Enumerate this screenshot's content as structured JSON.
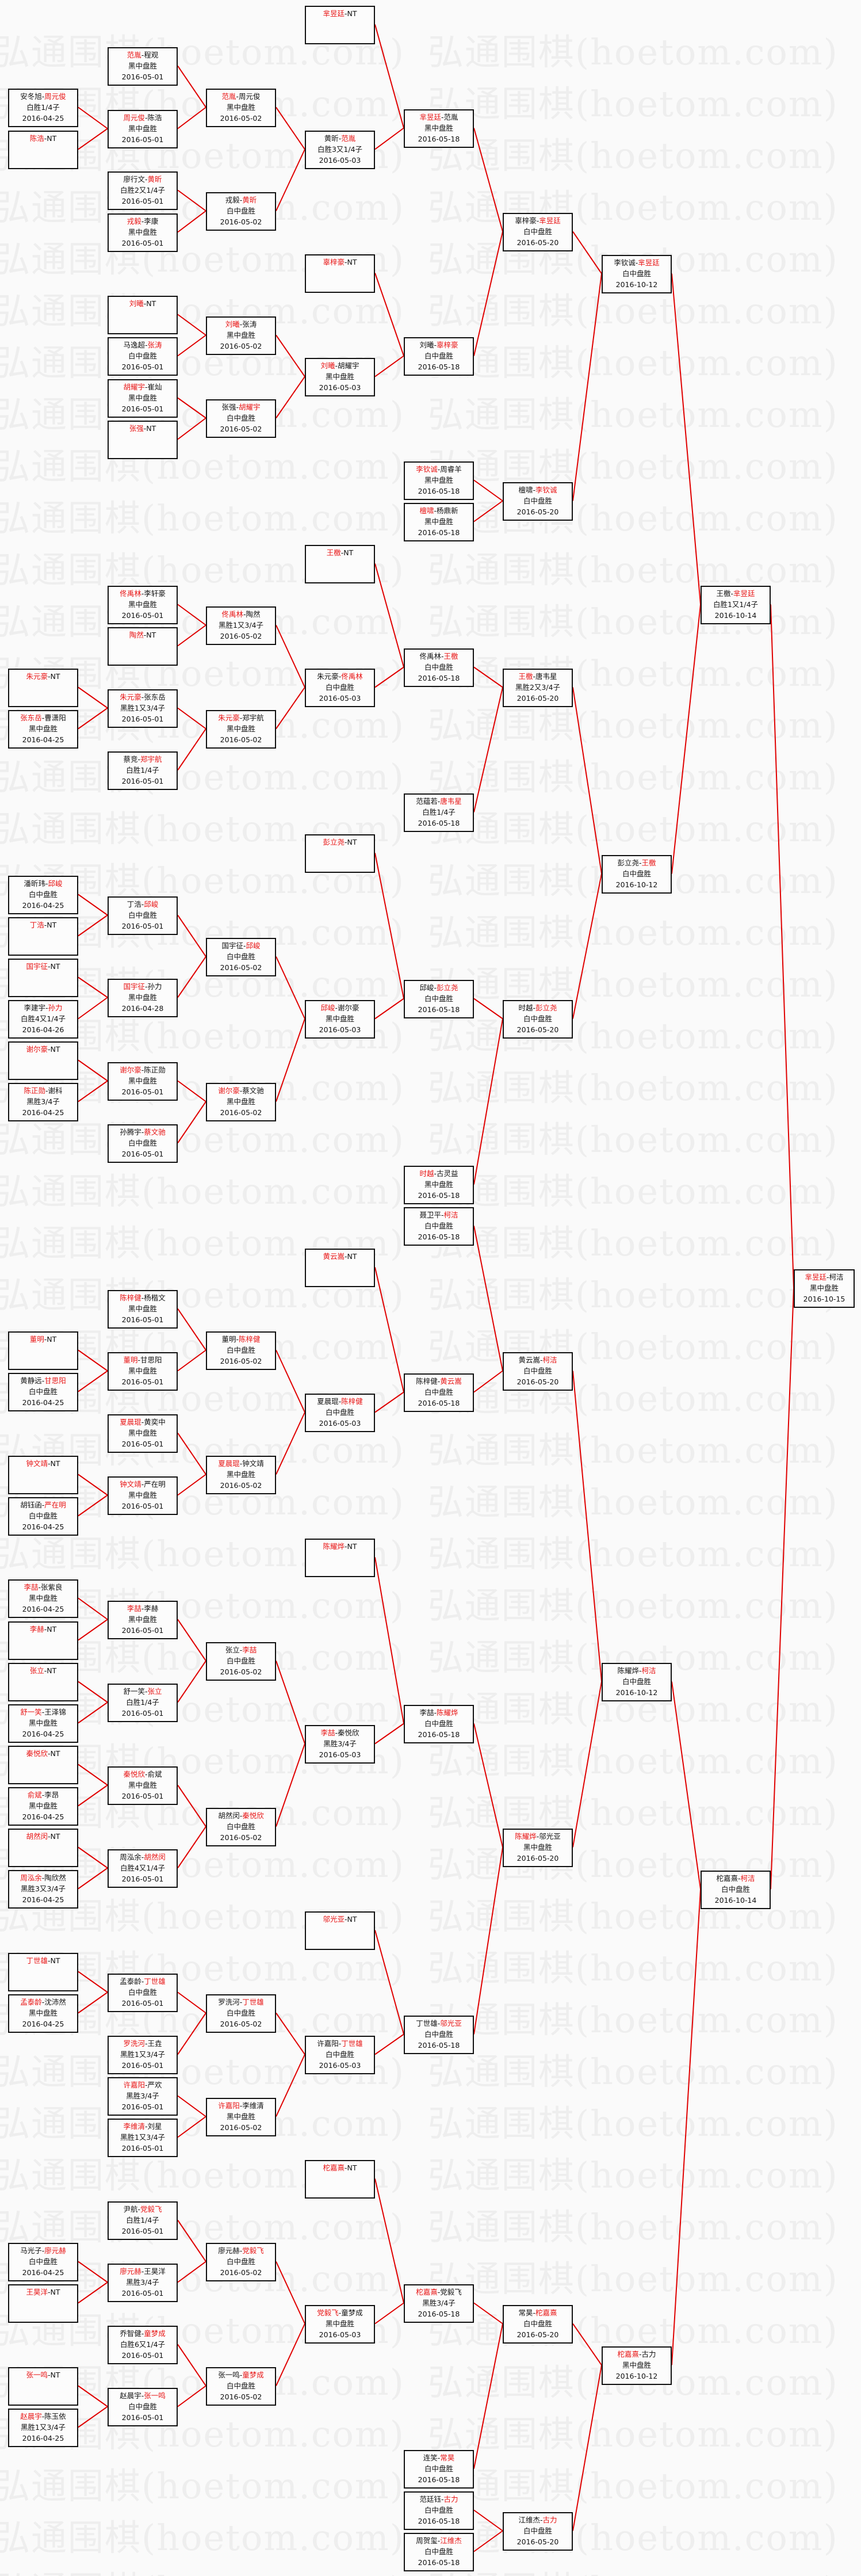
{
  "watermark": "弘通围棋(hoetom.com)",
  "separator": "-",
  "colors": {
    "winner": "#e81414",
    "connector": "#e00000",
    "border": "#111111"
  },
  "bracket": {
    "rounds": [
      [
        {
          "p1": "安冬旭",
          "p2": "周元俊",
          "winner": 2,
          "result": "白胜1/4子",
          "date": "2016-04-25"
        },
        {
          "p1": "陈浩",
          "p2": "NT",
          "winner": 1
        },
        {
          "p1": "朱元豪",
          "p2": "NT",
          "winner": 1
        },
        {
          "p1": "张东岳",
          "p2": "曹潇阳",
          "winner": 1,
          "result": "黑中盘胜",
          "date": "2016-04-25"
        },
        {
          "p1": "潘昕玮",
          "p2": "邱峻",
          "winner": 2,
          "result": "白中盘胜",
          "date": "2016-04-25"
        },
        {
          "p1": "丁浩",
          "p2": "NT",
          "winner": 1
        },
        {
          "p1": "国宇征",
          "p2": "NT",
          "winner": 1
        },
        {
          "p1": "李建宇",
          "p2": "孙力",
          "winner": 2,
          "result": "白胜4又1/4子",
          "date": "2016-04-26"
        },
        {
          "p1": "谢尔豪",
          "p2": "NT",
          "winner": 1
        },
        {
          "p1": "陈正勋",
          "p2": "谢科",
          "winner": 1,
          "result": "黑胜3/4子",
          "date": "2016-04-25"
        },
        {
          "p1": "董明",
          "p2": "NT",
          "winner": 1
        },
        {
          "p1": "黄静远",
          "p2": "甘思阳",
          "winner": 2,
          "result": "白中盘胜",
          "date": "2016-04-25"
        },
        {
          "p1": "钟文靖",
          "p2": "NT",
          "winner": 1
        },
        {
          "p1": "胡钰函",
          "p2": "严在明",
          "winner": 2,
          "result": "白中盘胜",
          "date": "2016-04-25"
        },
        {
          "p1": "李喆",
          "p2": "张紫良",
          "winner": 1,
          "result": "黑中盘胜",
          "date": "2016-04-25"
        },
        {
          "p1": "李赫",
          "p2": "NT",
          "winner": 1
        },
        {
          "p1": "张立",
          "p2": "NT",
          "winner": 1
        },
        {
          "p1": "舒一笑",
          "p2": "王泽锦",
          "winner": 1,
          "result": "黑中盘胜",
          "date": "2016-04-25"
        },
        {
          "p1": "秦悦欣",
          "p2": "NT",
          "winner": 1
        },
        {
          "p1": "俞斌",
          "p2": "李昂",
          "winner": 1,
          "result": "黑中盘胜",
          "date": "2016-04-25"
        },
        {
          "p1": "胡然闵",
          "p2": "NT",
          "winner": 1
        },
        {
          "p1": "周泓余",
          "p2": "陶欣然",
          "winner": 1,
          "result": "黑胜3又3/4子",
          "date": "2016-04-25"
        },
        {
          "p1": "丁世雄",
          "p2": "NT",
          "winner": 1
        },
        {
          "p1": "孟泰龄",
          "p2": "沈沛然",
          "winner": 1,
          "result": "黑中盘胜",
          "date": "2016-04-25"
        },
        {
          "p1": "马光子",
          "p2": "廖元赫",
          "winner": 2,
          "result": "白中盘胜",
          "date": "2016-04-25"
        },
        {
          "p1": "王昊洋",
          "p2": "NT",
          "winner": 1
        },
        {
          "p1": "张一鸣",
          "p2": "NT",
          "winner": 1
        },
        {
          "p1": "赵晨宇",
          "p2": "陈玉依",
          "winner": 1,
          "result": "黑胜1又3/4子",
          "date": "2016-04-25"
        }
      ],
      [
        {
          "p1": "范胤",
          "p2": "程观",
          "winner": 1,
          "result": "黑中盘胜",
          "date": "2016-05-01"
        },
        {
          "p1": "周元俊",
          "p2": "陈浩",
          "winner": 1,
          "result": "黑中盘胜",
          "date": "2016-05-01"
        },
        {
          "p1": "廖行文",
          "p2": "黄昕",
          "winner": 2,
          "result": "白胜2又1/4子",
          "date": "2016-05-01"
        },
        {
          "p1": "戎毅",
          "p2": "李康",
          "winner": 1,
          "result": "黑中盘胜",
          "date": "2016-05-01"
        },
        {
          "p1": "刘曦",
          "p2": "NT",
          "winner": 1
        },
        {
          "p1": "马逸超",
          "p2": "张涛",
          "winner": 2,
          "result": "白中盘胜",
          "date": "2016-05-01"
        },
        {
          "p1": "胡耀宇",
          "p2": "崔灿",
          "winner": 1,
          "result": "黑中盘胜",
          "date": "2016-05-01"
        },
        {
          "p1": "张强",
          "p2": "NT",
          "winner": 1
        },
        {
          "p1": "佟禹林",
          "p2": "李轩豪",
          "winner": 1,
          "result": "黑中盘胜",
          "date": "2016-05-01"
        },
        {
          "p1": "陶然",
          "p2": "NT",
          "winner": 1
        },
        {
          "p1": "朱元豪",
          "p2": "张东岳",
          "winner": 1,
          "result": "黑胜1又3/4子",
          "date": "2016-05-01"
        },
        {
          "p1": "蔡竞",
          "p2": "郑宇航",
          "winner": 2,
          "result": "白胜1/4子",
          "date": "2016-05-01"
        },
        {
          "p1": "丁浩",
          "p2": "邱峻",
          "winner": 2,
          "result": "白中盘胜",
          "date": "2016-05-01"
        },
        {
          "p1": "国宇征",
          "p2": "孙力",
          "winner": 1,
          "result": "黑中盘胜",
          "date": "2016-04-28"
        },
        {
          "p1": "谢尔豪",
          "p2": "陈正勋",
          "winner": 1,
          "result": "黑中盘胜",
          "date": "2016-05-01"
        },
        {
          "p1": "孙腾宇",
          "p2": "蔡文驰",
          "winner": 2,
          "result": "白中盘胜",
          "date": "2016-05-01"
        },
        {
          "p1": "陈梓健",
          "p2": "杨楷文",
          "winner": 1,
          "result": "黑中盘胜",
          "date": "2016-05-01"
        },
        {
          "p1": "董明",
          "p2": "甘思阳",
          "winner": 1,
          "result": "黑中盘胜",
          "date": "2016-05-01"
        },
        {
          "p1": "夏晨琨",
          "p2": "黄奕中",
          "winner": 1,
          "result": "黑中盘胜",
          "date": "2016-05-01"
        },
        {
          "p1": "钟文靖",
          "p2": "严在明",
          "winner": 1,
          "result": "黑中盘胜",
          "date": "2016-05-01"
        },
        {
          "p1": "李喆",
          "p2": "李赫",
          "winner": 1,
          "result": "黑中盘胜",
          "date": "2016-05-01"
        },
        {
          "p1": "舒一笑",
          "p2": "张立",
          "winner": 2,
          "result": "白胜1/4子",
          "date": "2016-05-01"
        },
        {
          "p1": "秦悦欣",
          "p2": "俞斌",
          "winner": 1,
          "result": "黑中盘胜",
          "date": "2016-05-01"
        },
        {
          "p1": "周泓余",
          "p2": "胡然闵",
          "winner": 2,
          "result": "白胜4又1/4子",
          "date": "2016-05-01"
        },
        {
          "p1": "孟泰龄",
          "p2": "丁世雄",
          "winner": 2,
          "result": "白中盘胜",
          "date": "2016-05-01"
        },
        {
          "p1": "罗洗河",
          "p2": "王垚",
          "winner": 1,
          "result": "黑胜1又3/4子",
          "date": "2016-05-01"
        },
        {
          "p1": "许嘉阳",
          "p2": "严欢",
          "winner": 1,
          "result": "黑胜3/4子",
          "date": "2016-05-01"
        },
        {
          "p1": "李维清",
          "p2": "刘星",
          "winner": 1,
          "result": "黑胜1又3/4子",
          "date": "2016-05-01"
        },
        {
          "p1": "尹航",
          "p2": "党毅飞",
          "winner": 2,
          "result": "白胜1/4子",
          "date": "2016-05-01"
        },
        {
          "p1": "廖元赫",
          "p2": "王昊洋",
          "winner": 1,
          "result": "黑胜3/4子",
          "date": "2016-05-01"
        },
        {
          "p1": "乔智健",
          "p2": "童梦成",
          "winner": 2,
          "result": "白胜6又1/4子",
          "date": "2016-05-01"
        },
        {
          "p1": "赵晨宇",
          "p2": "张一鸣",
          "winner": 2,
          "result": "白中盘胜",
          "date": "2016-05-01"
        }
      ],
      [
        {
          "p1": "范胤",
          "p2": "周元俊",
          "winner": 1,
          "result": "黑中盘胜",
          "date": "2016-05-02"
        },
        {
          "p1": "戎毅",
          "p2": "黄昕",
          "winner": 2,
          "result": "白中盘胜",
          "date": "2016-05-02"
        },
        {
          "p1": "刘曦",
          "p2": "张涛",
          "winner": 1,
          "result": "黑中盘胜",
          "date": "2016-05-02"
        },
        {
          "p1": "张强",
          "p2": "胡耀宇",
          "winner": 2,
          "result": "白中盘胜",
          "date": "2016-05-02"
        },
        {
          "p1": "佟禹林",
          "p2": "陶然",
          "winner": 1,
          "result": "黑胜1又3/4子",
          "date": "2016-05-02"
        },
        {
          "p1": "朱元豪",
          "p2": "郑宇航",
          "winner": 1,
          "result": "黑中盘胜",
          "date": "2016-05-02"
        },
        {
          "p1": "国宇征",
          "p2": "邱峻",
          "winner": 2,
          "result": "白中盘胜",
          "date": "2016-05-02"
        },
        {
          "p1": "谢尔豪",
          "p2": "蔡文驰",
          "winner": 1,
          "result": "黑中盘胜",
          "date": "2016-05-02"
        },
        {
          "p1": "董明",
          "p2": "陈梓健",
          "winner": 2,
          "result": "白中盘胜",
          "date": "2016-05-02"
        },
        {
          "p1": "夏晨琨",
          "p2": "钟文靖",
          "winner": 1,
          "result": "黑中盘胜",
          "date": "2016-05-02"
        },
        {
          "p1": "张立",
          "p2": "李喆",
          "winner": 2,
          "result": "白中盘胜",
          "date": "2016-05-02"
        },
        {
          "p1": "胡然闵",
          "p2": "秦悦欣",
          "winner": 2,
          "result": "白中盘胜",
          "date": "2016-05-02"
        },
        {
          "p1": "罗洗河",
          "p2": "丁世雄",
          "winner": 2,
          "result": "白中盘胜",
          "date": "2016-05-02"
        },
        {
          "p1": "许嘉阳",
          "p2": "李维清",
          "winner": 1,
          "result": "黑中盘胜",
          "date": "2016-05-02"
        },
        {
          "p1": "廖元赫",
          "p2": "党毅飞",
          "winner": 2,
          "result": "白中盘胜",
          "date": "2016-05-02"
        },
        {
          "p1": "张一鸣",
          "p2": "童梦成",
          "winner": 2,
          "result": "白中盘胜",
          "date": "2016-05-02"
        }
      ],
      [
        {
          "p1": "芈昱廷",
          "p2": "NT",
          "winner": 1
        },
        {
          "p1": "黄昕",
          "p2": "范胤",
          "winner": 2,
          "result": "白胜3又1/4子",
          "date": "2016-05-03"
        },
        {
          "p1": "辜梓豪",
          "p2": "NT",
          "winner": 1
        },
        {
          "p1": "刘曦",
          "p2": "胡耀宇",
          "winner": 1,
          "result": "黑中盘胜",
          "date": "2016-05-03"
        },
        {
          "p1": "王檄",
          "p2": "NT",
          "winner": 1
        },
        {
          "p1": "朱元豪",
          "p2": "佟禹林",
          "winner": 2,
          "result": "白中盘胜",
          "date": "2016-05-03"
        },
        {
          "p1": "彭立尧",
          "p2": "NT",
          "winner": 1
        },
        {
          "p1": "邱峻",
          "p2": "谢尔豪",
          "winner": 1,
          "result": "黑中盘胜",
          "date": "2016-05-03"
        },
        {
          "p1": "黄云嵩",
          "p2": "NT",
          "winner": 1
        },
        {
          "p1": "夏晨琨",
          "p2": "陈梓健",
          "winner": 2,
          "result": "白中盘胜",
          "date": "2016-05-03"
        },
        {
          "p1": "陈耀烨",
          "p2": "NT",
          "winner": 1
        },
        {
          "p1": "李喆",
          "p2": "秦悦欣",
          "winner": 1,
          "result": "黑胜3/4子",
          "date": "2016-05-03"
        },
        {
          "p1": "邬光亚",
          "p2": "NT",
          "winner": 1
        },
        {
          "p1": "许嘉阳",
          "p2": "丁世雄",
          "winner": 2,
          "result": "白中盘胜",
          "date": "2016-05-03"
        },
        {
          "p1": "柁嘉熹",
          "p2": "NT",
          "winner": 1
        },
        {
          "p1": "党毅飞",
          "p2": "童梦成",
          "winner": 1,
          "result": "黑中盘胜",
          "date": "2016-05-03"
        }
      ],
      [
        {
          "p1": "芈昱廷",
          "p2": "范胤",
          "winner": 1,
          "result": "黑中盘胜",
          "date": "2016-05-18"
        },
        {
          "p1": "刘曦",
          "p2": "辜梓豪",
          "winner": 2,
          "result": "白中盘胜",
          "date": "2016-05-18"
        },
        {
          "p1": "李钦诚",
          "p2": "周睿羊",
          "winner": 1,
          "result": "黑中盘胜",
          "date": "2016-05-18"
        },
        {
          "p1": "檀啸",
          "p2": "杨鼎新",
          "winner": 1,
          "result": "黑中盘胜",
          "date": "2016-05-18"
        },
        {
          "p1": "佟禹林",
          "p2": "王檄",
          "winner": 2,
          "result": "白中盘胜",
          "date": "2016-05-18"
        },
        {
          "p1": "范蕴若",
          "p2": "唐韦星",
          "winner": 2,
          "result": "白胜1/4子",
          "date": "2016-05-18"
        },
        {
          "p1": "邱峻",
          "p2": "彭立尧",
          "winner": 2,
          "result": "白中盘胜",
          "date": "2016-05-18"
        },
        {
          "p1": "时越",
          "p2": "古灵益",
          "winner": 1,
          "result": "黑中盘胜",
          "date": "2016-05-18"
        },
        {
          "p1": "聂卫平",
          "p2": "柯洁",
          "winner": 2,
          "result": "白中盘胜",
          "date": "2016-05-18"
        },
        {
          "p1": "陈梓健",
          "p2": "黄云嵩",
          "winner": 2,
          "result": "白中盘胜",
          "date": "2016-05-18"
        },
        {
          "p1": "李喆",
          "p2": "陈耀烨",
          "winner": 2,
          "result": "白中盘胜",
          "date": "2016-05-18"
        },
        {
          "p1": "丁世雄",
          "p2": "邬光亚",
          "winner": 2,
          "result": "白中盘胜",
          "date": "2016-05-18"
        },
        {
          "p1": "柁嘉熹",
          "p2": "党毅飞",
          "winner": 1,
          "result": "黑胜3/4子",
          "date": "2016-05-18"
        },
        {
          "p1": "连笑",
          "p2": "常昊",
          "winner": 2,
          "result": "白中盘胜",
          "date": "2016-05-18"
        },
        {
          "p1": "范廷钰",
          "p2": "古力",
          "winner": 2,
          "result": "白中盘胜",
          "date": "2016-05-18"
        },
        {
          "p1": "周贺玺",
          "p2": "江维杰",
          "winner": 2,
          "result": "白中盘胜",
          "date": "2016-05-18"
        }
      ],
      [
        {
          "p1": "辜梓豪",
          "p2": "芈昱廷",
          "winner": 2,
          "result": "白中盘胜",
          "date": "2016-05-20"
        },
        {
          "p1": "檀啸",
          "p2": "李钦诚",
          "winner": 2,
          "result": "白中盘胜",
          "date": "2016-05-20"
        },
        {
          "p1": "王檄",
          "p2": "唐韦星",
          "winner": 1,
          "result": "黑胜2又3/4子",
          "date": "2016-05-20"
        },
        {
          "p1": "时越",
          "p2": "彭立尧",
          "winner": 2,
          "result": "白中盘胜",
          "date": "2016-05-20"
        },
        {
          "p1": "黄云嵩",
          "p2": "柯洁",
          "winner": 2,
          "result": "白中盘胜",
          "date": "2016-05-20"
        },
        {
          "p1": "陈耀烨",
          "p2": "邬光亚",
          "winner": 1,
          "result": "黑中盘胜",
          "date": "2016-05-20"
        },
        {
          "p1": "常昊",
          "p2": "柁嘉熹",
          "winner": 2,
          "result": "白中盘胜",
          "date": "2016-05-20"
        },
        {
          "p1": "江维杰",
          "p2": "古力",
          "winner": 2,
          "result": "白中盘胜",
          "date": "2016-05-20"
        }
      ],
      [
        {
          "p1": "李钦诚",
          "p2": "芈昱廷",
          "winner": 2,
          "result": "白中盘胜",
          "date": "2016-10-12"
        },
        {
          "p1": "彭立尧",
          "p2": "王檄",
          "winner": 2,
          "result": "白中盘胜",
          "date": "2016-10-12"
        },
        {
          "p1": "陈耀烨",
          "p2": "柯洁",
          "winner": 2,
          "result": "白中盘胜",
          "date": "2016-10-12"
        },
        {
          "p1": "柁嘉熹",
          "p2": "古力",
          "winner": 1,
          "result": "黑中盘胜",
          "date": "2016-10-12"
        }
      ],
      [
        {
          "p1": "王檄",
          "p2": "芈昱廷",
          "winner": 2,
          "result": "白胜1又1/4子",
          "date": "2016-10-14"
        },
        {
          "p1": "柁嘉熹",
          "p2": "柯洁",
          "winner": 2,
          "result": "白中盘胜",
          "date": "2016-10-14"
        }
      ],
      [
        {
          "p1": "芈昱廷",
          "p2": "柯洁",
          "winner": 1,
          "result": "黑中盘胜",
          "date": "2016-10-15"
        }
      ]
    ]
  }
}
